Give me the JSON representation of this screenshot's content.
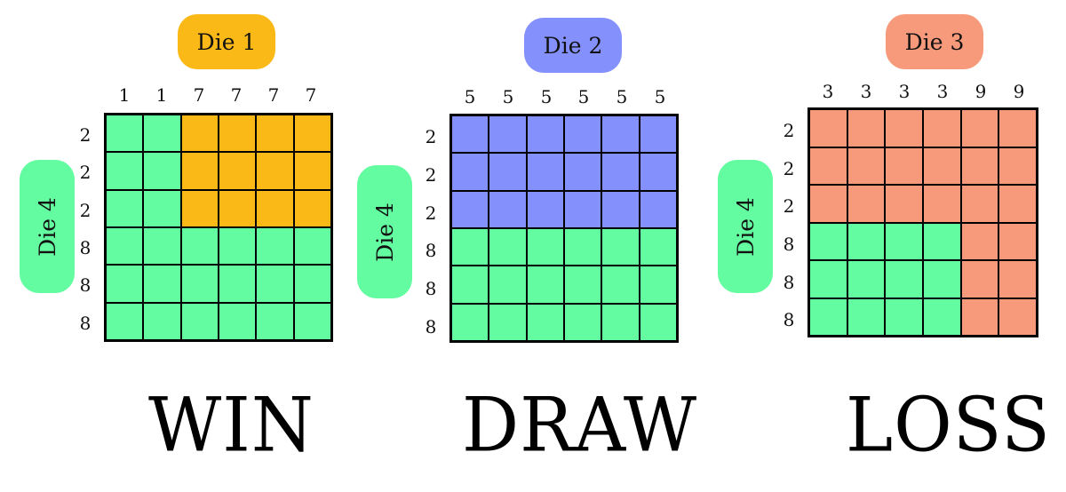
{
  "colors": {
    "die1": "#fbb917",
    "die2": "#8490fb",
    "die3": "#f79a7b",
    "die4": "#64fca0"
  },
  "panels": [
    {
      "top_die_label": "Die 1",
      "top_die_color": "#fbb917",
      "side_die_label": "Die 4",
      "column_faces": [
        "1",
        "1",
        "7",
        "7",
        "7",
        "7"
      ],
      "row_faces": [
        "2",
        "2",
        "2",
        "8",
        "8",
        "8"
      ],
      "result": "WIN"
    },
    {
      "top_die_label": "Die 2",
      "top_die_color": "#8490fb",
      "side_die_label": "Die 4",
      "column_faces": [
        "5",
        "5",
        "5",
        "5",
        "5",
        "5"
      ],
      "row_faces": [
        "2",
        "2",
        "2",
        "8",
        "8",
        "8"
      ],
      "result": "DRAW"
    },
    {
      "top_die_label": "Die 3",
      "top_die_color": "#f79a7b",
      "side_die_label": "Die 4",
      "column_faces": [
        "3",
        "3",
        "3",
        "3",
        "9",
        "9"
      ],
      "row_faces": [
        "2",
        "2",
        "2",
        "8",
        "8",
        "8"
      ],
      "result": "LOSS"
    }
  ]
}
